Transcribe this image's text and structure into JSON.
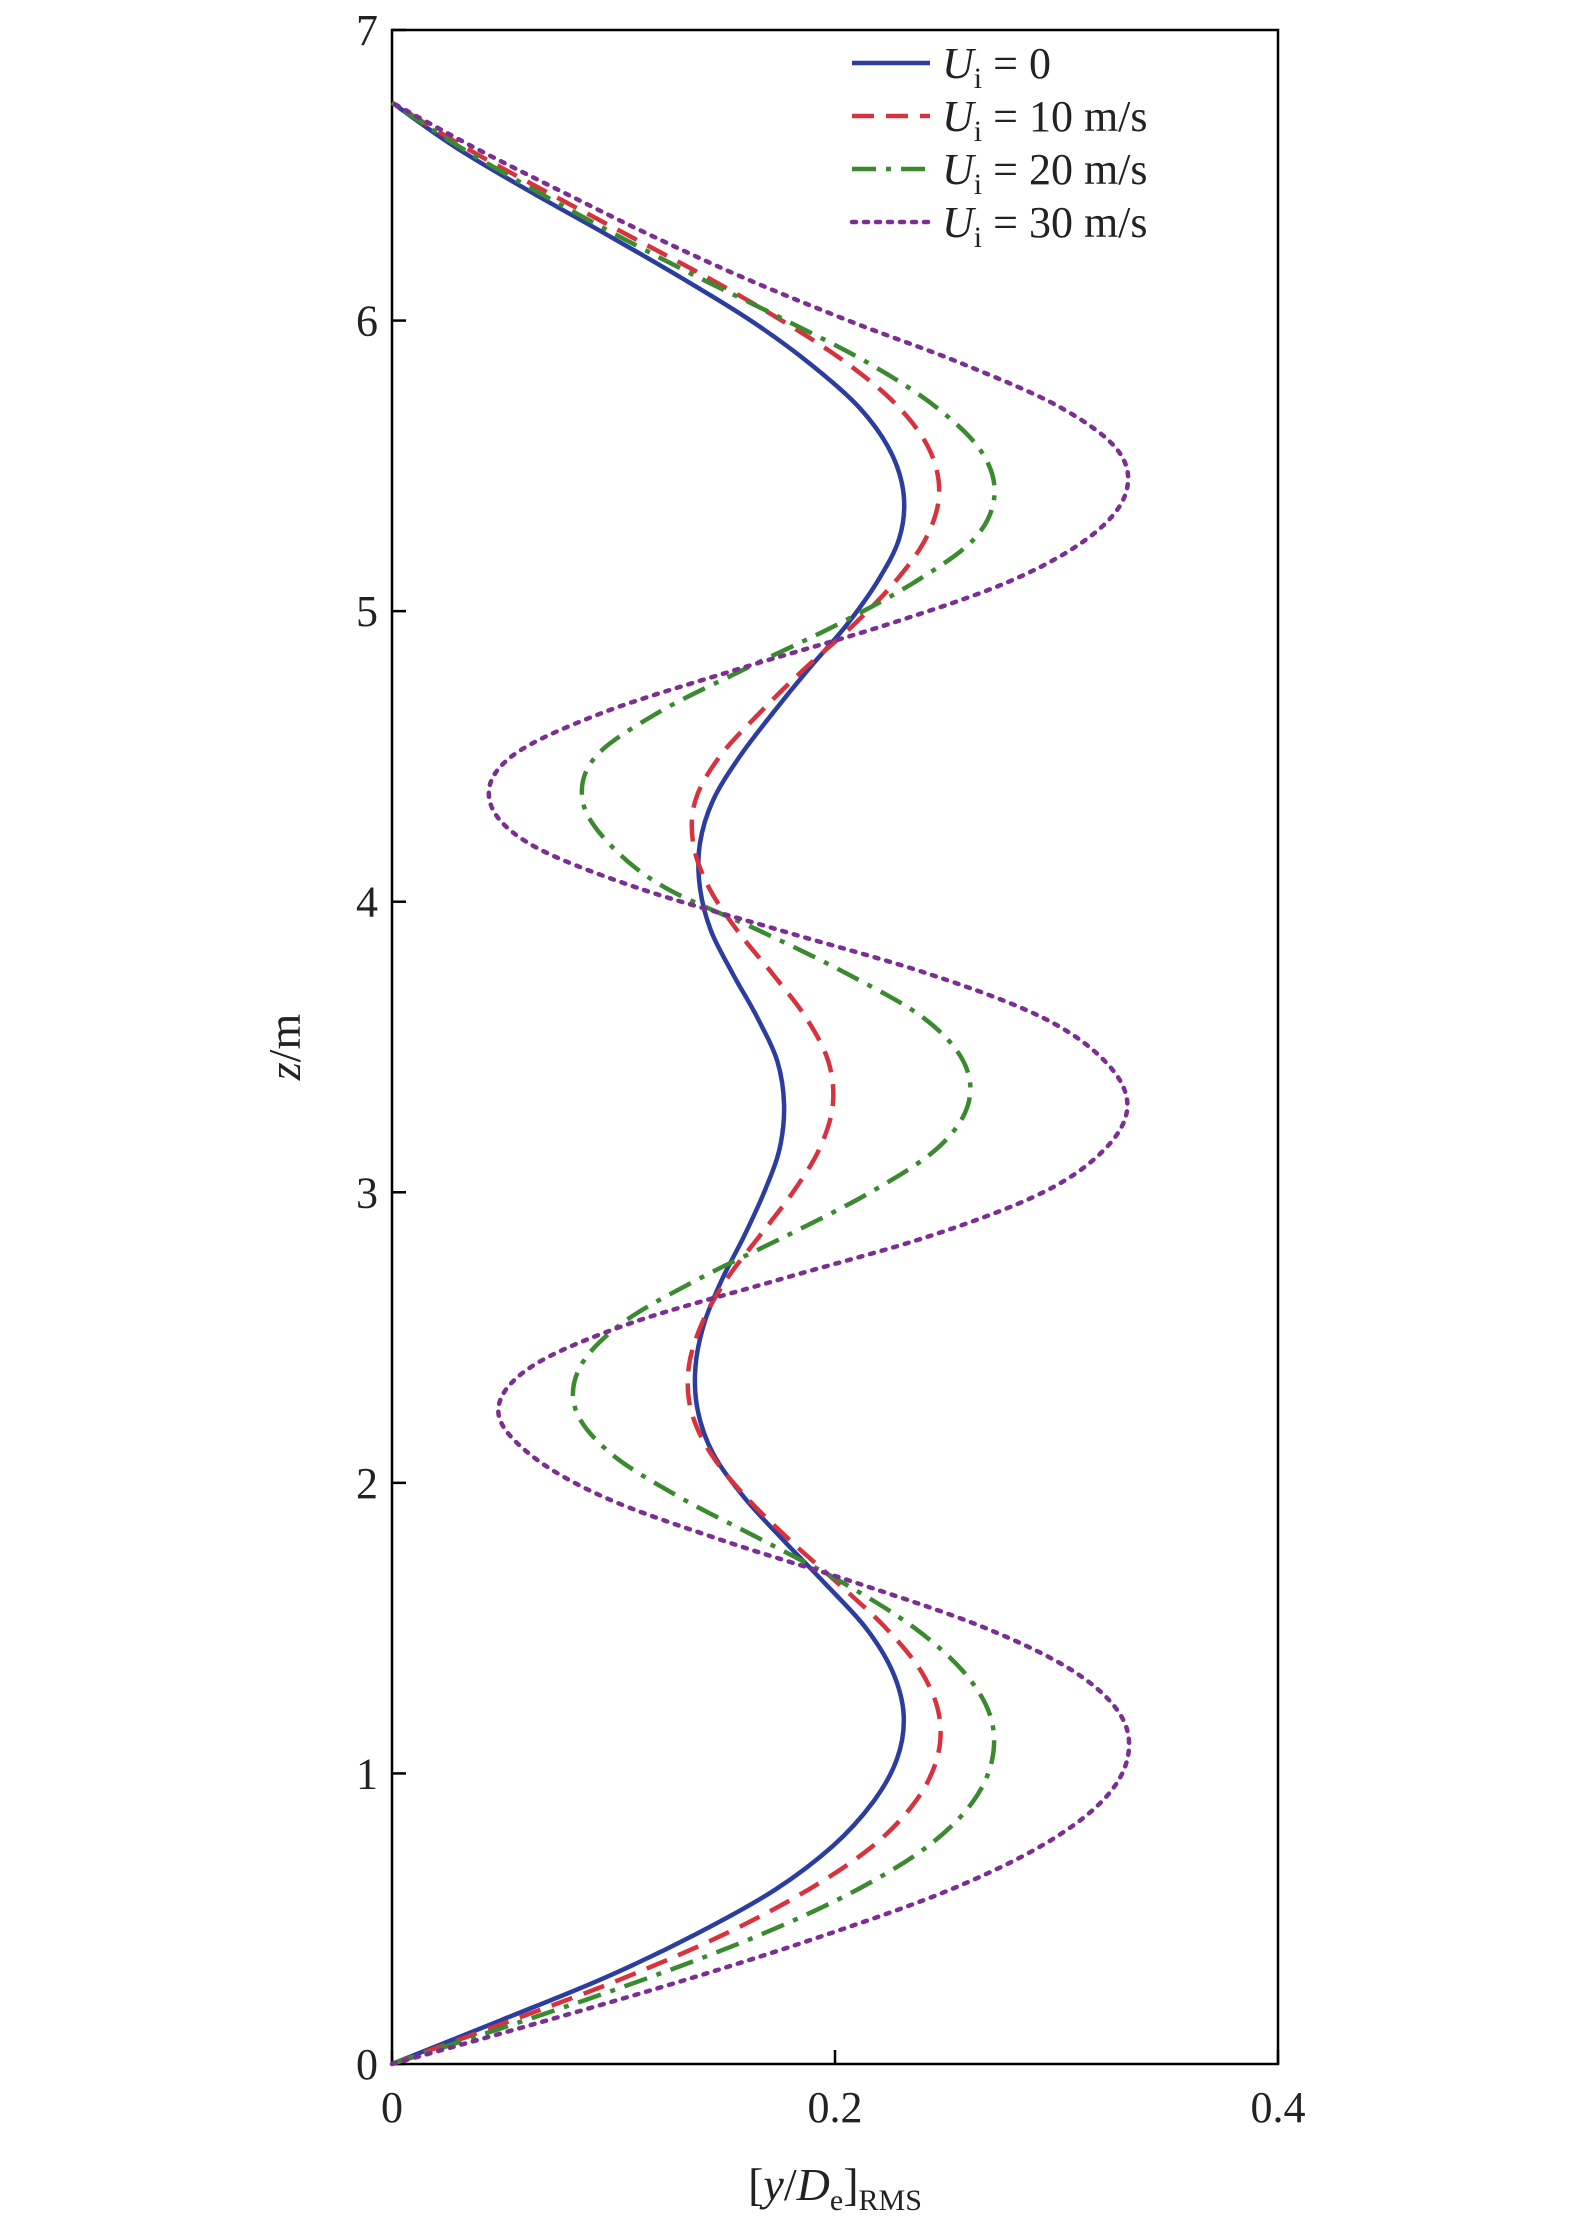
{
  "chart_data": {
    "type": "line",
    "title": "",
    "xlabel": {
      "base": "[",
      "var1": "y",
      "slash": "/",
      "var2": "D",
      "sub2": "e",
      "close": "]",
      "sub": "RMS"
    },
    "ylabel": {
      "var": "z",
      "unit": "/m"
    },
    "xlim": [
      0,
      0.4
    ],
    "ylim": [
      0,
      7
    ],
    "x_ticks": [
      0,
      0.2,
      0.4
    ],
    "x_tick_labels": [
      "0",
      "0.2",
      "0.4"
    ],
    "y_ticks": [
      0,
      1,
      2,
      3,
      4,
      5,
      6,
      7
    ],
    "y_tick_labels": [
      "0",
      "1",
      "2",
      "3",
      "4",
      "5",
      "6",
      "7"
    ],
    "grid": false,
    "legend": "top-right",
    "y": [
      0.0,
      0.15,
      0.3,
      0.45,
      0.6,
      0.75,
      0.9,
      1.05,
      1.2,
      1.35,
      1.5,
      1.65,
      1.8,
      1.95,
      2.1,
      2.25,
      2.4,
      2.55,
      2.7,
      2.85,
      3.0,
      3.15,
      3.3,
      3.45,
      3.6,
      3.75,
      3.9,
      4.05,
      4.2,
      4.35,
      4.5,
      4.65,
      4.8,
      4.95,
      5.1,
      5.25,
      5.4,
      5.55,
      5.7,
      5.85,
      6.0,
      6.15,
      6.3,
      6.45,
      6.6,
      6.75
    ],
    "series": [
      {
        "name": {
          "var": "U",
          "sub": "i",
          "rest": " = 0"
        },
        "color": "#2b3d9e",
        "dash": "solid",
        "values": [
          0.0,
          0.049,
          0.097,
          0.138,
          0.173,
          0.199,
          0.217,
          0.228,
          0.231,
          0.226,
          0.214,
          0.196,
          0.177,
          0.159,
          0.145,
          0.138,
          0.137,
          0.141,
          0.149,
          0.159,
          0.168,
          0.175,
          0.177,
          0.174,
          0.165,
          0.154,
          0.144,
          0.139,
          0.139,
          0.145,
          0.157,
          0.172,
          0.188,
          0.205,
          0.219,
          0.229,
          0.231,
          0.225,
          0.211,
          0.189,
          0.162,
          0.13,
          0.096,
          0.061,
          0.028,
          0.0
        ]
      },
      {
        "name": {
          "var": "U",
          "sub": "i",
          "rest": " = 10 m/s"
        },
        "color": "#d6333e",
        "dash": "dashed",
        "values": [
          0.0,
          0.054,
          0.106,
          0.151,
          0.188,
          0.217,
          0.236,
          0.246,
          0.247,
          0.239,
          0.223,
          0.202,
          0.18,
          0.16,
          0.144,
          0.135,
          0.134,
          0.14,
          0.151,
          0.166,
          0.181,
          0.193,
          0.199,
          0.197,
          0.187,
          0.172,
          0.156,
          0.143,
          0.136,
          0.137,
          0.148,
          0.166,
          0.186,
          0.208,
          0.227,
          0.241,
          0.247,
          0.243,
          0.229,
          0.206,
          0.176,
          0.142,
          0.105,
          0.068,
          0.032,
          0.0
        ]
      },
      {
        "name": {
          "var": "U",
          "sub": "i",
          "rest": " = 20 m/s"
        },
        "color": "#3b8a2f",
        "dash": "dashdot",
        "values": [
          0.0,
          0.06,
          0.117,
          0.168,
          0.21,
          0.242,
          0.262,
          0.271,
          0.27,
          0.258,
          0.236,
          0.205,
          0.168,
          0.13,
          0.099,
          0.083,
          0.085,
          0.104,
          0.138,
          0.178,
          0.216,
          0.246,
          0.26,
          0.258,
          0.24,
          0.206,
          0.166,
          0.123,
          0.098,
          0.086,
          0.092,
          0.12,
          0.159,
          0.2,
          0.236,
          0.263,
          0.272,
          0.266,
          0.246,
          0.216,
          0.178,
          0.138,
          0.1,
          0.064,
          0.03,
          0.0
        ]
      },
      {
        "name": {
          "var": "U",
          "sub": "i",
          "rest": " = 30 m/s"
        },
        "color": "#7b2f93",
        "dash": "dotted",
        "values": [
          0.0,
          0.07,
          0.137,
          0.198,
          0.252,
          0.293,
          0.32,
          0.332,
          0.329,
          0.308,
          0.268,
          0.212,
          0.15,
          0.096,
          0.062,
          0.048,
          0.063,
          0.108,
          0.175,
          0.243,
          0.294,
          0.322,
          0.332,
          0.322,
          0.294,
          0.243,
          0.176,
          0.11,
          0.062,
          0.044,
          0.054,
          0.095,
          0.156,
          0.222,
          0.278,
          0.314,
          0.331,
          0.328,
          0.302,
          0.258,
          0.206,
          0.158,
          0.115,
          0.075,
          0.036,
          0.0
        ]
      }
    ]
  }
}
